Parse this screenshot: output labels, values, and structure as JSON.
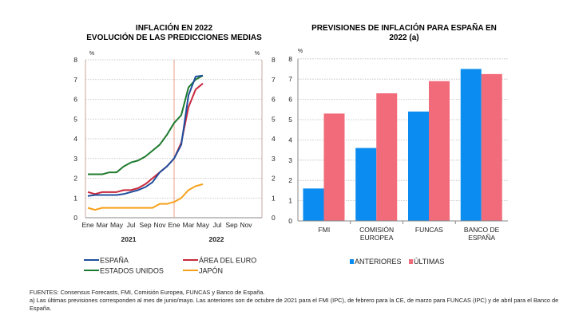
{
  "chart_data": [
    {
      "type": "line",
      "title": [
        "INFLACIÓN EN 2022",
        "EVOLUCIÓN DE LAS PREDICCIONES MEDIAS"
      ],
      "ylabel_left": "%",
      "ylabel_right": "%",
      "ylim": [
        0,
        8
      ],
      "yticks": [
        0,
        1,
        2,
        3,
        4,
        5,
        6,
        7,
        8
      ],
      "xtick_labels": [
        "Ene",
        "Mar",
        "May",
        "Jul",
        "Sep",
        "Nov",
        "Ene",
        "Mar",
        "May",
        "Jul",
        "Sep",
        "Nov"
      ],
      "year_labels": [
        "2021",
        "2022"
      ],
      "x": [
        "2021-01",
        "2021-02",
        "2021-03",
        "2021-04",
        "2021-05",
        "2021-06",
        "2021-07",
        "2021-08",
        "2021-09",
        "2021-10",
        "2021-11",
        "2021-12",
        "2022-01",
        "2022-02",
        "2022-03",
        "2022-04",
        "2022-05"
      ],
      "xlim": [
        "2021-01",
        "2022-12"
      ],
      "grid": true,
      "legend_placement": "bottom",
      "series": [
        {
          "name": "ESPAÑA",
          "color": "#1f4e9c",
          "values": [
            1.1,
            1.15,
            1.15,
            1.15,
            1.15,
            1.2,
            1.3,
            1.4,
            1.55,
            1.8,
            2.3,
            2.6,
            3.0,
            3.7,
            6.2,
            7.15,
            7.2
          ]
        },
        {
          "name": "ÁREA DEL EURO",
          "color": "#c8283c",
          "values": [
            1.3,
            1.2,
            1.3,
            1.3,
            1.3,
            1.4,
            1.4,
            1.5,
            1.7,
            2.0,
            2.3,
            2.6,
            3.0,
            3.8,
            5.6,
            6.5,
            6.8
          ]
        },
        {
          "name": "ESTADOS UNIDOS",
          "color": "#1e7b2e",
          "values": [
            2.2,
            2.2,
            2.2,
            2.3,
            2.3,
            2.6,
            2.8,
            2.9,
            3.1,
            3.4,
            3.7,
            4.2,
            4.8,
            5.2,
            6.6,
            7.0,
            7.2
          ]
        },
        {
          "name": "JAPÓN",
          "color": "#f7a11a",
          "values": [
            0.5,
            0.4,
            0.5,
            0.5,
            0.5,
            0.5,
            0.5,
            0.5,
            0.5,
            0.5,
            0.7,
            0.7,
            0.8,
            1.0,
            1.4,
            1.6,
            1.7
          ]
        }
      ],
      "vline_at": "2022-01",
      "vline_color": "#e8a08a"
    },
    {
      "type": "bar",
      "title": [
        "PREVISIONES DE INFLACIÓN PARA ESPAÑA EN",
        "2022 (a)"
      ],
      "ylabel": "%",
      "ylim": [
        0,
        8
      ],
      "yticks": [
        0,
        1,
        2,
        3,
        4,
        5,
        6,
        7,
        8
      ],
      "categories": [
        [
          "FMI"
        ],
        [
          "COMISIÓN",
          "EUROPEA"
        ],
        [
          "FUNCAS"
        ],
        [
          "BANCO DE",
          "ESPAÑA"
        ]
      ],
      "grid": true,
      "legend_placement": "bottom",
      "series": [
        {
          "name": "ANTERIORES",
          "color": "#0a8cf0",
          "values": [
            1.6,
            3.6,
            5.4,
            7.5
          ]
        },
        {
          "name": "ÚLTIMAS",
          "color": "#f26b7a",
          "values": [
            5.3,
            6.3,
            6.9,
            7.25
          ]
        }
      ]
    }
  ],
  "notes": {
    "sources": "FUENTES: Consensus Forecasts, FMI, Comisión Europea, FUNCAS y Banco de España.",
    "footnote": "a) Las últimas previsiones corresponden al mes de junio/mayo. Las anteriores son de octubre de 2021 para el FMI (IPC), de febrero para la CE, de marzo para FUNCAS (IPC) y de abril para el Banco de España."
  }
}
